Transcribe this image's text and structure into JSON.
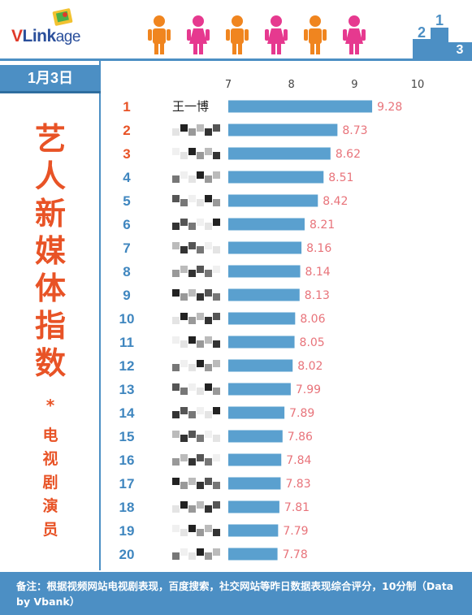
{
  "header": {
    "logo_part1": "V",
    "logo_part2": "Link",
    "logo_part3": "age"
  },
  "panel": {
    "date": "1月3日",
    "title": "艺人新媒体指数",
    "title_mark": "*",
    "subtitle": "电视剧演员"
  },
  "colors": {
    "brand_blue": "#4c8fc4",
    "bar_blue": "#5aa0cf",
    "rank_top3": "#e85326",
    "rank_other": "#3f86bf",
    "value_label": "#e8737a",
    "title_orange": "#e85326"
  },
  "chart_data": {
    "type": "bar",
    "orientation": "horizontal",
    "title": "艺人新媒体指数",
    "subtitle": "电视剧演员",
    "xlim": [
      7,
      10
    ],
    "xticks": [
      7,
      8,
      9,
      10
    ],
    "grid": false,
    "ranks": [
      "1",
      "2",
      "3",
      "4",
      "5",
      "6",
      "7",
      "8",
      "9",
      "10",
      "11",
      "12",
      "13",
      "14",
      "15",
      "16",
      "17",
      "18",
      "19",
      "20"
    ],
    "categories": [
      "王一博",
      "",
      "",
      "",
      "",
      "",
      "",
      "",
      "",
      "",
      "",
      "",
      "",
      "",
      "",
      "",
      "",
      "",
      "",
      ""
    ],
    "values": [
      9.28,
      8.73,
      8.62,
      8.51,
      8.42,
      8.21,
      8.16,
      8.14,
      8.13,
      8.06,
      8.05,
      8.02,
      7.99,
      7.89,
      7.86,
      7.84,
      7.83,
      7.81,
      7.79,
      7.78
    ]
  },
  "footer": {
    "note": "备注：根据视频网站电视剧表现，百度搜索，社交网站等昨日数据表现综合评分，10分制（Data by Vbank）"
  }
}
